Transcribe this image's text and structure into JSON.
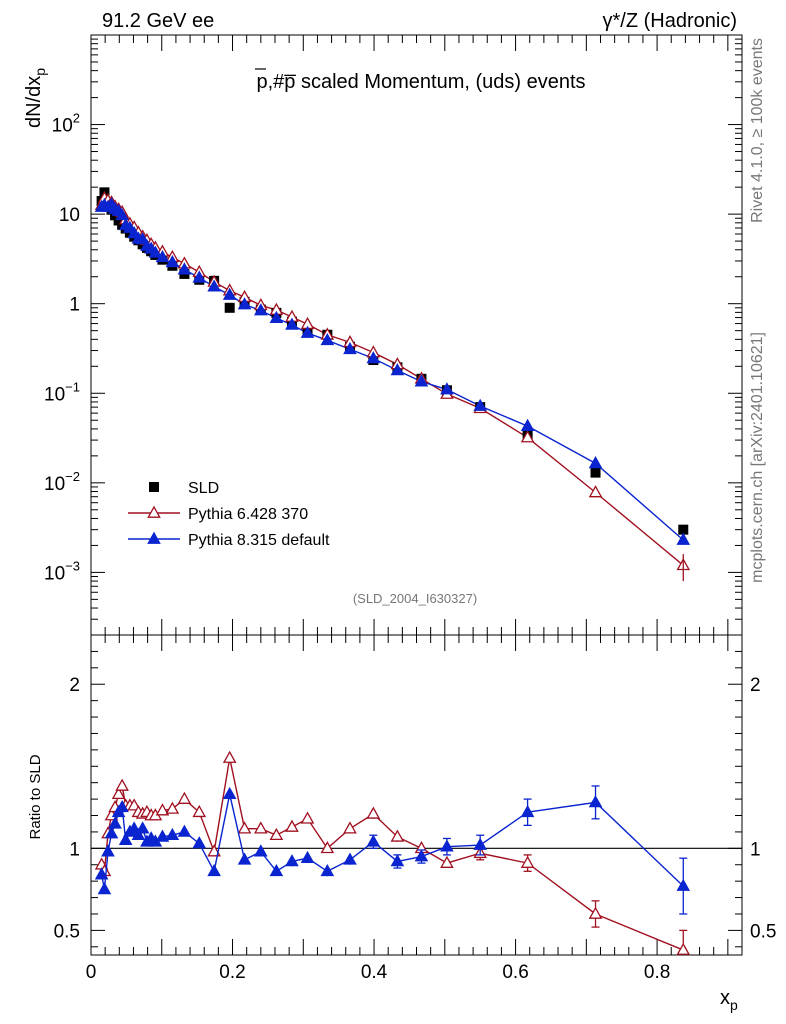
{
  "header": {
    "left": "91.2 GeV ee",
    "right": "γ*/Z (Hadronic)"
  },
  "side_labels": {
    "rivet": "Rivet 4.1.0, ≥ 100k events",
    "mcplots": "mcplots.cern.ch [arXiv:2401.10621]"
  },
  "chart_data": [
    {
      "type": "scatter",
      "panel": "main",
      "title": "p,#p̅ scaled Momentum, (uds) events",
      "xlabel": "x_p",
      "ylabel": "dN/dx_p",
      "ylog": true,
      "xlim": [
        0,
        0.92
      ],
      "ylim": [
        0.0002,
        1000
      ],
      "y_tick_labels": [
        {
          "value": 0.001,
          "base": "10",
          "exp": "−3"
        },
        {
          "value": 0.01,
          "base": "10",
          "exp": "−2"
        },
        {
          "value": 0.1,
          "base": "10",
          "exp": "−1"
        },
        {
          "value": 1,
          "base": "1",
          "exp": ""
        },
        {
          "value": 10,
          "base": "10",
          "exp": ""
        },
        {
          "value": 100,
          "base": "10",
          "exp": "2"
        }
      ],
      "annotation": "(SLD_2004_I630327)",
      "x": [
        0.015,
        0.019,
        0.024,
        0.029,
        0.034,
        0.039,
        0.044,
        0.049,
        0.055,
        0.061,
        0.067,
        0.073,
        0.079,
        0.085,
        0.091,
        0.101,
        0.115,
        0.132,
        0.153,
        0.174,
        0.196,
        0.217,
        0.24,
        0.262,
        0.284,
        0.306,
        0.334,
        0.366,
        0.399,
        0.433,
        0.467,
        0.503,
        0.55,
        0.617,
        0.713,
        0.837
      ],
      "series": [
        {
          "name": "SLD",
          "marker": "square",
          "color": "#000000",
          "values": [
            14,
            17.5,
            13,
            11.2,
            9.7,
            8.5,
            7.6,
            6.9,
            6.2,
            5.6,
            5.1,
            4.6,
            4.2,
            3.85,
            3.5,
            3.1,
            2.65,
            2.15,
            1.85,
            1.8,
            0.9,
            1.05,
            0.86,
            0.79,
            0.63,
            0.5,
            0.45,
            0.33,
            0.235,
            0.195,
            0.145,
            0.108,
            0.07,
            0.035,
            0.013,
            0.003
          ]
        },
        {
          "name": "Pythia 6.428 370",
          "marker": "open-triangle",
          "color": "#a01020",
          "values": [
            12.6,
            15,
            14.2,
            13.5,
            12.1,
            11.3,
            10.5,
            8.7,
            7.8,
            7.1,
            6.2,
            5.6,
            5.1,
            4.6,
            4.2,
            3.8,
            3.3,
            2.8,
            2.25,
            1.75,
            1.4,
            1.18,
            0.96,
            0.85,
            0.71,
            0.59,
            0.45,
            0.37,
            0.285,
            0.21,
            0.145,
            0.098,
            0.068,
            0.032,
            0.0078,
            0.0012
          ]
        },
        {
          "name": "Pythia 8.315 default",
          "marker": "filled-triangle",
          "color": "#0a24d0",
          "values": [
            12,
            12.6,
            12,
            12.8,
            11.4,
            10.8,
            9.7,
            7.5,
            7,
            6.1,
            5.3,
            5.2,
            4.4,
            4.1,
            3.7,
            3.3,
            2.9,
            2.4,
            1.95,
            1.55,
            1.25,
            0.98,
            0.84,
            0.69,
            0.58,
            0.47,
            0.39,
            0.31,
            0.245,
            0.18,
            0.135,
            0.11,
            0.072,
            0.043,
            0.0165,
            0.0023
          ]
        }
      ]
    },
    {
      "type": "scatter",
      "panel": "ratio",
      "xlabel": "x_p",
      "ylabel": "Ratio to SLD",
      "xlim": [
        0,
        0.92
      ],
      "ylim": [
        0.35,
        2.3
      ],
      "x_tick_labels": [
        "0",
        "0.2",
        "0.4",
        "0.6",
        "0.8"
      ],
      "x_ticks": [
        0,
        0.2,
        0.4,
        0.6,
        0.8
      ],
      "y_tick_labels": [
        "0.5",
        "1",
        "2"
      ],
      "y_ticks": [
        0.5,
        1,
        2
      ],
      "reference_line": 1,
      "x": [
        0.015,
        0.019,
        0.024,
        0.029,
        0.034,
        0.039,
        0.044,
        0.049,
        0.055,
        0.061,
        0.067,
        0.073,
        0.079,
        0.085,
        0.091,
        0.101,
        0.115,
        0.132,
        0.153,
        0.174,
        0.196,
        0.217,
        0.24,
        0.262,
        0.284,
        0.306,
        0.334,
        0.366,
        0.399,
        0.433,
        0.467,
        0.503,
        0.55,
        0.617,
        0.713,
        0.837
      ],
      "series": [
        {
          "name": "Pythia 6.428 370",
          "color": "#a01020",
          "values": [
            0.9,
            0.86,
            1.09,
            1.2,
            1.25,
            1.33,
            1.38,
            1.26,
            1.26,
            1.26,
            1.22,
            1.21,
            1.22,
            1.2,
            1.2,
            1.23,
            1.24,
            1.3,
            1.22,
            0.98,
            1.55,
            1.12,
            1.12,
            1.08,
            1.13,
            1.18,
            1.0,
            1.12,
            1.21,
            1.07,
            1.0,
            0.91,
            0.97,
            0.91,
            0.6,
            0.38
          ],
          "errors": [
            0.02,
            0.02,
            0.02,
            0.02,
            0.02,
            0.02,
            0.02,
            0.02,
            0.02,
            0.02,
            0.02,
            0.02,
            0.02,
            0.02,
            0.02,
            0.02,
            0.02,
            0.02,
            0.02,
            0.02,
            0.03,
            0.02,
            0.02,
            0.02,
            0.02,
            0.02,
            0.02,
            0.02,
            0.03,
            0.03,
            0.03,
            0.03,
            0.04,
            0.05,
            0.08,
            0.12
          ]
        },
        {
          "name": "Pythia 8.315 default",
          "color": "#0a24d0",
          "values": [
            0.84,
            0.75,
            0.98,
            1.09,
            1.15,
            1.22,
            1.25,
            1.05,
            1.1,
            1.12,
            1.08,
            1.12,
            1.04,
            1.06,
            1.04,
            1.07,
            1.08,
            1.1,
            1.03,
            0.86,
            1.33,
            0.93,
            0.98,
            0.86,
            0.92,
            0.94,
            0.86,
            0.93,
            1.04,
            0.92,
            0.95,
            1.01,
            1.02,
            1.22,
            1.28,
            0.77
          ],
          "errors": [
            0.02,
            0.02,
            0.02,
            0.02,
            0.02,
            0.02,
            0.02,
            0.02,
            0.02,
            0.02,
            0.02,
            0.02,
            0.02,
            0.02,
            0.02,
            0.02,
            0.02,
            0.02,
            0.02,
            0.02,
            0.03,
            0.02,
            0.02,
            0.02,
            0.03,
            0.03,
            0.03,
            0.03,
            0.04,
            0.04,
            0.04,
            0.05,
            0.06,
            0.08,
            0.1,
            0.17
          ]
        }
      ]
    }
  ]
}
